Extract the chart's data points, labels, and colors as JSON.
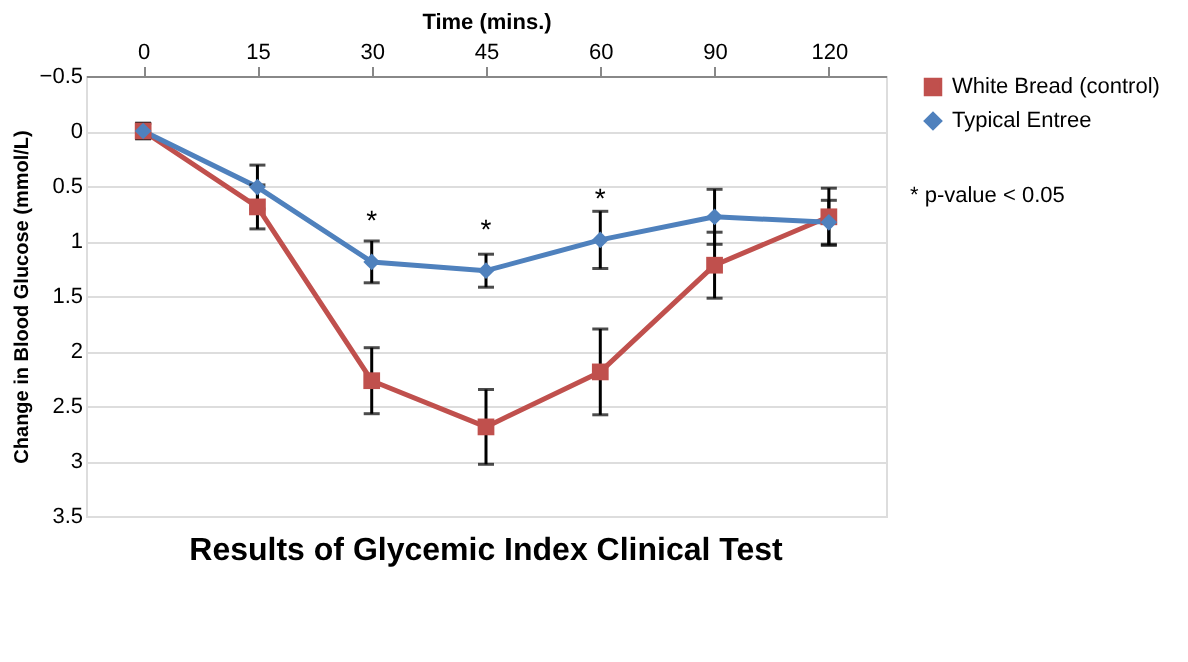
{
  "chart_data": {
    "type": "line",
    "title": "Results of Glycemic Index Clinical Test",
    "xlabel": "Time (mins.)",
    "ylabel": "Change in Blood Glucose (mmol/L)",
    "categories": [
      "0",
      "15",
      "30",
      "45",
      "60",
      "90",
      "120"
    ],
    "series": [
      {
        "name": "White Bread (control)",
        "color": "#c0504d",
        "marker": "square",
        "values": [
          0,
          0.69,
          2.27,
          2.69,
          2.19,
          1.22,
          0.78
        ],
        "errors": [
          0.07,
          0.2,
          0.3,
          0.34,
          0.39,
          0.3,
          0.26
        ]
      },
      {
        "name": "Typical Entree",
        "color": "#4f81bd",
        "marker": "diamond",
        "values": [
          0,
          0.51,
          1.19,
          1.27,
          0.99,
          0.78,
          0.83
        ],
        "errors": [
          0.07,
          0.2,
          0.19,
          0.15,
          0.26,
          0.25,
          0.2
        ]
      }
    ],
    "ylim": [
      3.5,
      -0.5
    ],
    "yticks": [
      -0.5,
      0,
      0.5,
      1,
      1.5,
      2,
      2.5,
      3,
      3.5
    ],
    "grid": "y",
    "legend": "right",
    "annotations": [
      "* p-value < 0.05",
      {
        "text": "*",
        "x": "30",
        "y": 1.19
      },
      {
        "text": "*",
        "x": "45",
        "y": 1.27
      },
      {
        "text": "*",
        "x": "60",
        "y": 0.99
      }
    ]
  }
}
